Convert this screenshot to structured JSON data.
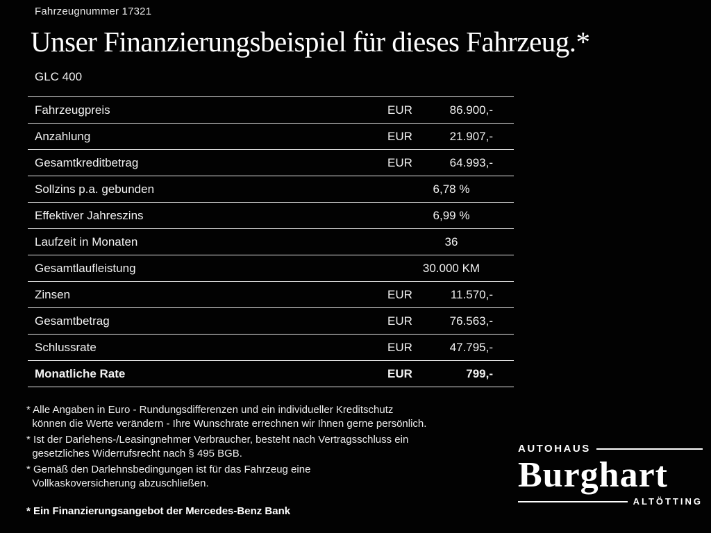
{
  "header": {
    "vehicle_number": "Fahrzeugnummer 17321",
    "title": "Unser Finanzierungsbeispiel für dieses Fahrzeug.*",
    "model": "GLC 400"
  },
  "table": {
    "rows": [
      {
        "label": "Fahrzeugpreis",
        "currency": "EUR",
        "value": "86.900,-"
      },
      {
        "label": "Anzahlung",
        "currency": "EUR",
        "value": "21.907,-"
      },
      {
        "label": "Gesamtkreditbetrag",
        "currency": "EUR",
        "value": "64.993,-"
      },
      {
        "label": "Sollzins p.a. gebunden",
        "currency": "",
        "value": "6,78 %"
      },
      {
        "label": "Effektiver Jahreszins",
        "currency": "",
        "value": "6,99 %"
      },
      {
        "label": "Laufzeit in Monaten",
        "currency": "",
        "value": "36"
      },
      {
        "label": "Gesamtlaufleistung",
        "currency": "",
        "value": "30.000 KM"
      },
      {
        "label": "Zinsen",
        "currency": "EUR",
        "value": "11.570,-"
      },
      {
        "label": "Gesamtbetrag",
        "currency": "EUR",
        "value": "76.563,-"
      },
      {
        "label": "Schlussrate",
        "currency": "EUR",
        "value": "47.795,-"
      },
      {
        "label": "Monatliche Rate",
        "currency": "EUR",
        "value": "799,-"
      }
    ]
  },
  "footnotes": [
    "* Alle Angaben in Euro - Rundungsdifferenzen und ein individueller Kreditschutz\n  können die Werte verändern - Ihre Wunschrate errechnen wir Ihnen gerne persönlich.",
    "* Ist der Darlehens-/Leasingnehmer Verbraucher, besteht nach Vertragsschluss ein\n  gesetzliches Widerrufsrecht nach § 495 BGB.",
    "* Gemäß den Darlehnsbedingungen ist für das Fahrzeug eine\n  Vollkaskoversicherung abzuschließen."
  ],
  "bank_note": "* Ein Finanzierungsangebot der Mercedes-Benz Bank",
  "logo": {
    "top": "AUTOHAUS",
    "name": "Burghart",
    "bottom": "ALTÖTTING"
  }
}
